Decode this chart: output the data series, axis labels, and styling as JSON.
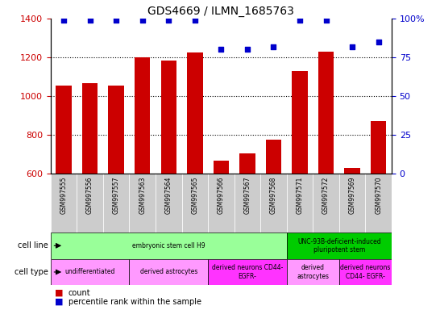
{
  "title": "GDS4669 / ILMN_1685763",
  "samples": [
    "GSM997555",
    "GSM997556",
    "GSM997557",
    "GSM997563",
    "GSM997564",
    "GSM997565",
    "GSM997566",
    "GSM997567",
    "GSM997568",
    "GSM997571",
    "GSM997572",
    "GSM997569",
    "GSM997570"
  ],
  "counts": [
    1055,
    1065,
    1055,
    1200,
    1185,
    1225,
    668,
    705,
    775,
    1130,
    1230,
    628,
    870
  ],
  "percentile": [
    99,
    99,
    99,
    99,
    99,
    99,
    80,
    80,
    82,
    99,
    99,
    82,
    85
  ],
  "ylim_left": [
    600,
    1400
  ],
  "ylim_right": [
    0,
    100
  ],
  "yticks_left": [
    600,
    800,
    1000,
    1200,
    1400
  ],
  "yticks_right": [
    0,
    25,
    50,
    75,
    100
  ],
  "bar_color": "#cc0000",
  "dot_color": "#0000cc",
  "grid_color": "#000000",
  "cell_line_groups": [
    {
      "label": "embryonic stem cell H9",
      "start": 0,
      "end": 9,
      "color": "#99ff99"
    },
    {
      "label": "UNC-93B-deficient-induced\npluripotent stem",
      "start": 9,
      "end": 13,
      "color": "#00cc00"
    }
  ],
  "cell_type_groups": [
    {
      "label": "undifferentiated",
      "start": 0,
      "end": 3,
      "color": "#ff99ff"
    },
    {
      "label": "derived astrocytes",
      "start": 3,
      "end": 6,
      "color": "#ff99ff"
    },
    {
      "label": "derived neurons CD44-\nEGFR-",
      "start": 6,
      "end": 9,
      "color": "#ff33ff"
    },
    {
      "label": "derived\nastrocytes",
      "start": 9,
      "end": 11,
      "color": "#ff99ff"
    },
    {
      "label": "derived neurons\nCD44- EGFR-",
      "start": 11,
      "end": 13,
      "color": "#ff33ff"
    }
  ],
  "legend_items": [
    {
      "label": "count",
      "color": "#cc0000"
    },
    {
      "label": "percentile rank within the sample",
      "color": "#0000cc"
    }
  ],
  "sample_bg_color": "#cccccc",
  "bar_bottom": 600
}
